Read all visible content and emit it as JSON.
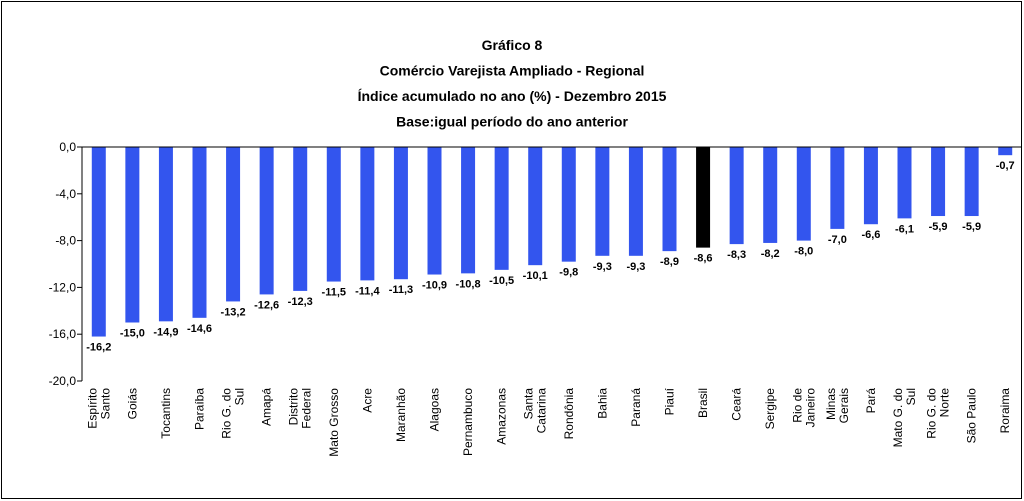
{
  "chart_data": {
    "type": "bar",
    "title": [
      "Gráfico 8",
      "Comércio Varejista Ampliado - Regional",
      "Índice acumulado no ano (%) - Dezembro 2015",
      "Base:igual período do ano anterior"
    ],
    "categories": [
      "Espírito\nSanto",
      "Goiás",
      "Tocantins",
      "Paraíba",
      "Rio G. do\nSul",
      "Amapá",
      "Distrito\nFederal",
      "Mato Grosso",
      "Acre",
      "Maranhão",
      "Alagoas",
      "Pernambuco",
      "Amazonas",
      "Santa\nCatarina",
      "Rondônia",
      "Bahia",
      "Paraná",
      "Piauí",
      "Brasil",
      "Ceará",
      "Sergipe",
      "Rio de\nJaneiro",
      "Minas\nGerais",
      "Pará",
      "Mato G. do\nSul",
      "Rio G. do\nNorte",
      "São Paulo",
      "Roraima"
    ],
    "values": [
      -16.2,
      -15.0,
      -14.9,
      -14.6,
      -13.2,
      -12.6,
      -12.3,
      -11.5,
      -11.4,
      -11.3,
      -10.9,
      -10.8,
      -10.5,
      -10.1,
      -9.8,
      -9.3,
      -9.3,
      -8.9,
      -8.6,
      -8.3,
      -8.2,
      -8.0,
      -7.0,
      -6.6,
      -6.1,
      -5.9,
      -5.9,
      -0.7
    ],
    "value_labels": [
      "-16,2",
      "-15,0",
      "-14,9",
      "-14,6",
      "-13,2",
      "-12,6",
      "-12,3",
      "-11,5",
      "-11,4",
      "-11,3",
      "-10,9",
      "-10,8",
      "-10,5",
      "-10,1",
      "-9,8",
      "-9,3",
      "-9,3",
      "-8,9",
      "-8,6",
      "-8,3",
      "-8,2",
      "-8,0",
      "-7,0",
      "-6,6",
      "-6,1",
      "-5,9",
      "-5,9",
      "-0,7"
    ],
    "colors": [
      "#3355ee",
      "#3355ee",
      "#3355ee",
      "#3355ee",
      "#3355ee",
      "#3355ee",
      "#3355ee",
      "#3355ee",
      "#3355ee",
      "#3355ee",
      "#3355ee",
      "#3355ee",
      "#3355ee",
      "#3355ee",
      "#3355ee",
      "#3355ee",
      "#3355ee",
      "#3355ee",
      "#000000",
      "#3355ee",
      "#3355ee",
      "#3355ee",
      "#3355ee",
      "#3355ee",
      "#3355ee",
      "#3355ee",
      "#3355ee",
      "#3355ee"
    ],
    "ylim": [
      -20,
      0
    ],
    "yticks": [
      {
        "value": 0,
        "label": "0,0"
      },
      {
        "value": -4,
        "label": "-4,0"
      },
      {
        "value": -8,
        "label": "-8,0"
      },
      {
        "value": -12,
        "label": "-12,0"
      },
      {
        "value": -16,
        "label": "-16,0"
      },
      {
        "value": -20,
        "label": "-20,0"
      }
    ],
    "grid": false
  }
}
